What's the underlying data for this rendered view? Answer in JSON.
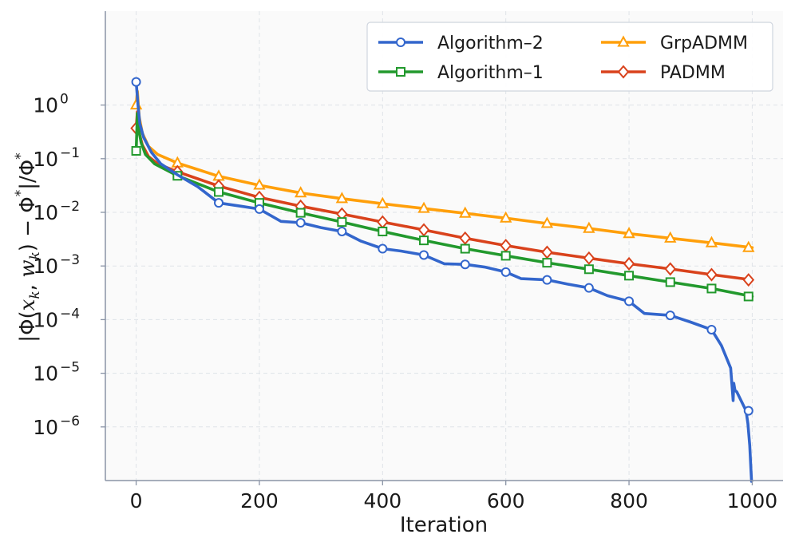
{
  "chart_data": {
    "type": "line",
    "title": "",
    "xlabel": "Iteration",
    "ylabel": {
      "parts": [
        "|",
        "Φ(",
        "x",
        "k",
        ", ",
        "w",
        "k",
        ") − Φ",
        "*",
        "|/Φ",
        "*"
      ]
    },
    "x_ticks": [
      "0",
      "200",
      "400",
      "600",
      "800",
      "1000"
    ],
    "x_tick_values": [
      0,
      200,
      400,
      600,
      800,
      1000
    ],
    "y_ticks": [
      {
        "base": "10",
        "exp": "0",
        "value": 1
      },
      {
        "base": "10",
        "exp": "−1",
        "value": 0.1
      },
      {
        "base": "10",
        "exp": "−2",
        "value": 0.01
      },
      {
        "base": "10",
        "exp": "−3",
        "value": 0.001
      },
      {
        "base": "10",
        "exp": "−4",
        "value": 0.0001
      },
      {
        "base": "10",
        "exp": "−5",
        "value": 1e-05
      },
      {
        "base": "10",
        "exp": "−6",
        "value": 1e-06
      }
    ],
    "xlim": [
      -50,
      1050
    ],
    "ylim_log10": [
      -7.0,
      1.75
    ],
    "y_scale": "log",
    "grid": true,
    "legend_position": "top-right",
    "series": [
      {
        "name": "Algorithm–2",
        "color": "#3366cc",
        "marker": "circle",
        "line": [
          [
            0,
            2.7
          ],
          [
            3,
            1.0
          ],
          [
            6,
            0.45
          ],
          [
            12,
            0.25
          ],
          [
            25,
            0.13
          ],
          [
            40,
            0.08
          ],
          [
            67,
            0.05
          ],
          [
            100,
            0.03
          ],
          [
            134,
            0.015
          ],
          [
            170,
            0.013
          ],
          [
            200,
            0.0115
          ],
          [
            235,
            0.0068
          ],
          [
            267,
            0.0064
          ],
          [
            300,
            0.0052
          ],
          [
            334,
            0.0044
          ],
          [
            365,
            0.0029
          ],
          [
            400,
            0.0021
          ],
          [
            430,
            0.0019
          ],
          [
            467,
            0.0016
          ],
          [
            500,
            0.0011
          ],
          [
            534,
            0.00107
          ],
          [
            567,
            0.00095
          ],
          [
            600,
            0.00077
          ],
          [
            625,
            0.00058
          ],
          [
            667,
            0.00055
          ],
          [
            700,
            0.00046
          ],
          [
            735,
            0.00039
          ],
          [
            765,
            0.00028
          ],
          [
            800,
            0.00022
          ],
          [
            825,
            0.00013
          ],
          [
            867,
            0.00012
          ],
          [
            900,
            9e-05
          ],
          [
            934,
            6.5e-05
          ],
          [
            950,
            3.3e-05
          ],
          [
            965,
            1.25e-05
          ],
          [
            968,
            4.5e-06
          ],
          [
            969,
            3.1e-06
          ],
          [
            970,
            6.5e-06
          ],
          [
            972,
            4.8e-06
          ],
          [
            975,
            4.5e-06
          ],
          [
            990,
            2e-06
          ],
          [
            993,
            1.15e-06
          ],
          [
            996,
            4.5e-07
          ],
          [
            998,
            1.5e-07
          ],
          [
            999,
            9e-08
          ]
        ],
        "markers": [
          [
            0,
            2.7
          ],
          [
            134,
            0.015
          ],
          [
            200,
            0.0115
          ],
          [
            267,
            0.0064
          ],
          [
            334,
            0.0044
          ],
          [
            400,
            0.0021
          ],
          [
            467,
            0.0016
          ],
          [
            534,
            0.00107
          ],
          [
            600,
            0.00077
          ],
          [
            667,
            0.00055
          ],
          [
            735,
            0.00039
          ],
          [
            800,
            0.00022
          ],
          [
            867,
            0.00012
          ],
          [
            934,
            6.5e-05
          ],
          [
            994,
            2e-06
          ]
        ]
      },
      {
        "name": "Algorithm–1",
        "color": "#22992d",
        "marker": "square",
        "line": [
          [
            0,
            0.14
          ],
          [
            2,
            0.7
          ],
          [
            4,
            0.35
          ],
          [
            8,
            0.2
          ],
          [
            15,
            0.12
          ],
          [
            30,
            0.08
          ],
          [
            67,
            0.048
          ],
          [
            134,
            0.024
          ],
          [
            200,
            0.015
          ],
          [
            267,
            0.0098
          ],
          [
            334,
            0.0066
          ],
          [
            400,
            0.0044
          ],
          [
            467,
            0.003
          ],
          [
            534,
            0.0021
          ],
          [
            600,
            0.00155
          ],
          [
            667,
            0.00115
          ],
          [
            735,
            0.00087
          ],
          [
            800,
            0.00066
          ],
          [
            867,
            0.0005
          ],
          [
            934,
            0.00038
          ],
          [
            1000,
            0.00027
          ]
        ],
        "markers": [
          [
            0,
            0.14
          ],
          [
            67,
            0.048
          ],
          [
            134,
            0.024
          ],
          [
            200,
            0.015
          ],
          [
            267,
            0.0098
          ],
          [
            334,
            0.0066
          ],
          [
            400,
            0.0044
          ],
          [
            467,
            0.003
          ],
          [
            534,
            0.0021
          ],
          [
            600,
            0.00155
          ],
          [
            667,
            0.00115
          ],
          [
            735,
            0.00087
          ],
          [
            800,
            0.00066
          ],
          [
            867,
            0.0005
          ],
          [
            934,
            0.00038
          ],
          [
            994,
            0.00027
          ]
        ]
      },
      {
        "name": "GrpADMM",
        "color": "#ff9f0a",
        "marker": "triangle",
        "line": [
          [
            0,
            1.0
          ],
          [
            2,
            1.8
          ],
          [
            5,
            0.6
          ],
          [
            10,
            0.3
          ],
          [
            20,
            0.17
          ],
          [
            35,
            0.12
          ],
          [
            67,
            0.083
          ],
          [
            134,
            0.047
          ],
          [
            200,
            0.032
          ],
          [
            267,
            0.023
          ],
          [
            334,
            0.018
          ],
          [
            400,
            0.0145
          ],
          [
            467,
            0.0118
          ],
          [
            534,
            0.0096
          ],
          [
            600,
            0.0078
          ],
          [
            667,
            0.0062
          ],
          [
            735,
            0.005
          ],
          [
            800,
            0.004
          ],
          [
            867,
            0.0033
          ],
          [
            934,
            0.0027
          ],
          [
            1000,
            0.0022
          ]
        ],
        "markers": [
          [
            0,
            1.0
          ],
          [
            67,
            0.083
          ],
          [
            134,
            0.047
          ],
          [
            200,
            0.032
          ],
          [
            267,
            0.023
          ],
          [
            334,
            0.018
          ],
          [
            400,
            0.0145
          ],
          [
            467,
            0.0118
          ],
          [
            534,
            0.0096
          ],
          [
            600,
            0.0078
          ],
          [
            667,
            0.0062
          ],
          [
            735,
            0.005
          ],
          [
            800,
            0.004
          ],
          [
            867,
            0.0033
          ],
          [
            934,
            0.0027
          ],
          [
            994,
            0.0022
          ]
        ]
      },
      {
        "name": "PADMM",
        "color": "#d9421c",
        "marker": "diamond",
        "line": [
          [
            0,
            0.37
          ],
          [
            2,
            0.75
          ],
          [
            5,
            0.3
          ],
          [
            10,
            0.18
          ],
          [
            20,
            0.11
          ],
          [
            35,
            0.08
          ],
          [
            67,
            0.057
          ],
          [
            134,
            0.031
          ],
          [
            200,
            0.019
          ],
          [
            267,
            0.013
          ],
          [
            334,
            0.0093
          ],
          [
            400,
            0.0066
          ],
          [
            467,
            0.0047
          ],
          [
            534,
            0.0033
          ],
          [
            600,
            0.0024
          ],
          [
            667,
            0.0018
          ],
          [
            735,
            0.0014
          ],
          [
            800,
            0.0011
          ],
          [
            867,
            0.00088
          ],
          [
            934,
            0.00069
          ],
          [
            1000,
            0.00055
          ]
        ],
        "markers": [
          [
            0,
            0.37
          ],
          [
            67,
            0.057
          ],
          [
            134,
            0.031
          ],
          [
            200,
            0.019
          ],
          [
            267,
            0.013
          ],
          [
            334,
            0.0093
          ],
          [
            400,
            0.0066
          ],
          [
            467,
            0.0047
          ],
          [
            534,
            0.0033
          ],
          [
            600,
            0.0024
          ],
          [
            667,
            0.0018
          ],
          [
            735,
            0.0014
          ],
          [
            800,
            0.0011
          ],
          [
            867,
            0.00088
          ],
          [
            934,
            0.00069
          ],
          [
            994,
            0.00055
          ]
        ]
      }
    ],
    "legend": {
      "columns": [
        [
          "Algorithm–2",
          "Algorithm–1"
        ],
        [
          "GrpADMM",
          "PADMM"
        ]
      ]
    }
  }
}
